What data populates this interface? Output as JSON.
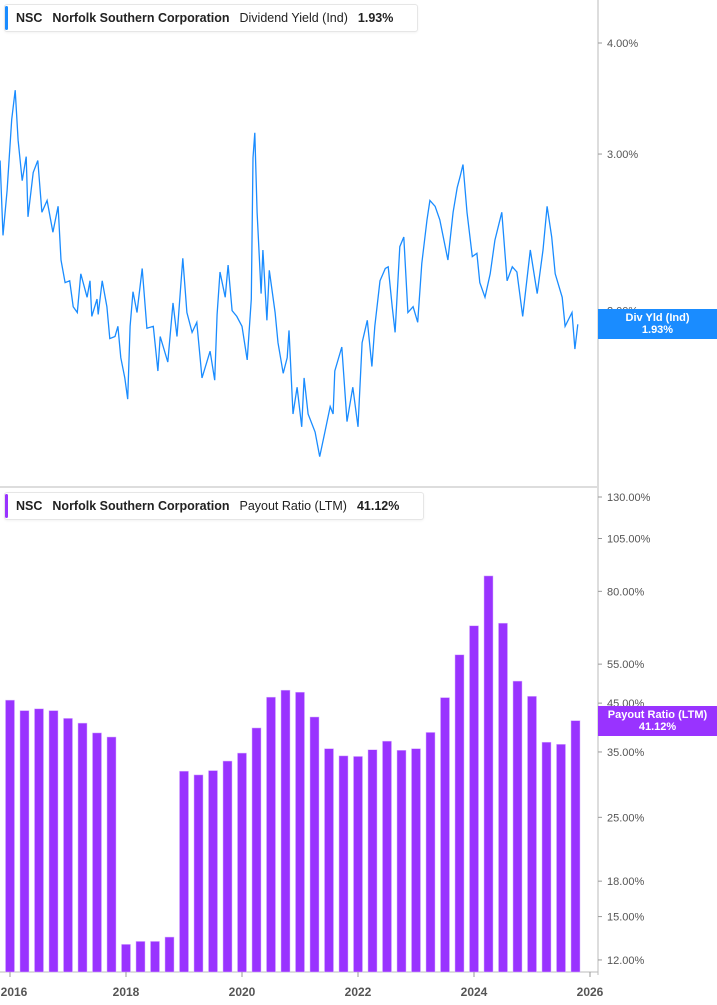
{
  "colors": {
    "yield": "#1a8cff",
    "payout": "#9933ff"
  },
  "top_legend": {
    "ticker": "NSC",
    "company": "Norfolk Southern Corporation",
    "metric": "Dividend Yield (Ind)",
    "value": "1.93%"
  },
  "top_tag": {
    "label": "Div Yld (Ind)",
    "value": "1.93%"
  },
  "bottom_legend": {
    "ticker": "NSC",
    "company": "Norfolk Southern Corporation",
    "metric": "Payout Ratio (LTM)",
    "value": "41.12%"
  },
  "bottom_tag": {
    "label": "Payout Ratio (LTM)",
    "value": "41.12%"
  },
  "chart_data": [
    {
      "type": "line",
      "series_name": "Dividend Yield (Ind)",
      "y_scale": "log",
      "ylim": [
        1.3,
        4.3
      ],
      "y_ticks": [
        "4.00%",
        "3.00%",
        "2.00%"
      ],
      "y_tick_values": [
        4,
        3,
        2
      ],
      "xlim": [
        2015.83,
        2026.2
      ],
      "points": [
        [
          2015.83,
          2.95
        ],
        [
          2015.88,
          2.43
        ],
        [
          2015.95,
          2.73
        ],
        [
          2016.03,
          3.28
        ],
        [
          2016.09,
          3.54
        ],
        [
          2016.14,
          3.11
        ],
        [
          2016.21,
          2.8
        ],
        [
          2016.28,
          2.98
        ],
        [
          2016.31,
          2.55
        ],
        [
          2016.4,
          2.86
        ],
        [
          2016.48,
          2.95
        ],
        [
          2016.55,
          2.58
        ],
        [
          2016.64,
          2.66
        ],
        [
          2016.74,
          2.45
        ],
        [
          2016.83,
          2.62
        ],
        [
          2016.88,
          2.28
        ],
        [
          2016.95,
          2.15
        ],
        [
          2017.03,
          2.16
        ],
        [
          2017.09,
          2.02
        ],
        [
          2017.16,
          1.99
        ],
        [
          2017.22,
          2.2
        ],
        [
          2017.33,
          2.07
        ],
        [
          2017.38,
          2.16
        ],
        [
          2017.41,
          1.97
        ],
        [
          2017.5,
          2.06
        ],
        [
          2017.52,
          1.98
        ],
        [
          2017.59,
          2.16
        ],
        [
          2017.67,
          2.02
        ],
        [
          2017.72,
          1.86
        ],
        [
          2017.81,
          1.87
        ],
        [
          2017.86,
          1.92
        ],
        [
          2017.91,
          1.77
        ],
        [
          2017.98,
          1.68
        ],
        [
          2018.03,
          1.59
        ],
        [
          2018.07,
          1.92
        ],
        [
          2018.12,
          2.1
        ],
        [
          2018.19,
          1.99
        ],
        [
          2018.28,
          2.23
        ],
        [
          2018.36,
          1.91
        ],
        [
          2018.47,
          1.92
        ],
        [
          2018.55,
          1.71
        ],
        [
          2018.59,
          1.87
        ],
        [
          2018.72,
          1.75
        ],
        [
          2018.81,
          2.04
        ],
        [
          2018.88,
          1.87
        ],
        [
          2018.98,
          2.29
        ],
        [
          2019.05,
          1.99
        ],
        [
          2019.14,
          1.89
        ],
        [
          2019.22,
          1.94
        ],
        [
          2019.31,
          1.68
        ],
        [
          2019.45,
          1.8
        ],
        [
          2019.53,
          1.67
        ],
        [
          2019.57,
          1.98
        ],
        [
          2019.62,
          2.21
        ],
        [
          2019.71,
          2.07
        ],
        [
          2019.76,
          2.25
        ],
        [
          2019.83,
          2.0
        ],
        [
          2019.91,
          1.97
        ],
        [
          2020.0,
          1.92
        ],
        [
          2020.09,
          1.76
        ],
        [
          2020.16,
          2.06
        ],
        [
          2020.19,
          2.97
        ],
        [
          2020.22,
          3.17
        ],
        [
          2020.26,
          2.58
        ],
        [
          2020.33,
          2.09
        ],
        [
          2020.36,
          2.34
        ],
        [
          2020.43,
          1.95
        ],
        [
          2020.47,
          2.22
        ],
        [
          2020.57,
          1.99
        ],
        [
          2020.62,
          1.84
        ],
        [
          2020.71,
          1.7
        ],
        [
          2020.78,
          1.77
        ],
        [
          2020.81,
          1.9
        ],
        [
          2020.88,
          1.53
        ],
        [
          2020.95,
          1.64
        ],
        [
          2021.03,
          1.48
        ],
        [
          2021.07,
          1.68
        ],
        [
          2021.14,
          1.53
        ],
        [
          2021.26,
          1.46
        ],
        [
          2021.34,
          1.37
        ],
        [
          2021.43,
          1.46
        ],
        [
          2021.52,
          1.56
        ],
        [
          2021.57,
          1.53
        ],
        [
          2021.6,
          1.71
        ],
        [
          2021.72,
          1.82
        ],
        [
          2021.81,
          1.5
        ],
        [
          2021.91,
          1.64
        ],
        [
          2022.0,
          1.48
        ],
        [
          2022.07,
          1.84
        ],
        [
          2022.16,
          1.95
        ],
        [
          2022.24,
          1.73
        ],
        [
          2022.29,
          1.92
        ],
        [
          2022.38,
          2.16
        ],
        [
          2022.47,
          2.23
        ],
        [
          2022.52,
          2.24
        ],
        [
          2022.59,
          2.02
        ],
        [
          2022.64,
          1.89
        ],
        [
          2022.72,
          2.36
        ],
        [
          2022.79,
          2.42
        ],
        [
          2022.86,
          1.99
        ],
        [
          2022.95,
          2.02
        ],
        [
          2023.03,
          1.94
        ],
        [
          2023.1,
          2.26
        ],
        [
          2023.19,
          2.53
        ],
        [
          2023.24,
          2.66
        ],
        [
          2023.33,
          2.62
        ],
        [
          2023.41,
          2.53
        ],
        [
          2023.55,
          2.28
        ],
        [
          2023.64,
          2.58
        ],
        [
          2023.71,
          2.75
        ],
        [
          2023.76,
          2.83
        ],
        [
          2023.81,
          2.92
        ],
        [
          2023.88,
          2.58
        ],
        [
          2023.97,
          2.3
        ],
        [
          2024.05,
          2.32
        ],
        [
          2024.1,
          2.15
        ],
        [
          2024.19,
          2.07
        ],
        [
          2024.28,
          2.2
        ],
        [
          2024.36,
          2.4
        ],
        [
          2024.48,
          2.58
        ],
        [
          2024.57,
          2.16
        ],
        [
          2024.66,
          2.24
        ],
        [
          2024.74,
          2.21
        ],
        [
          2024.84,
          1.97
        ],
        [
          2024.97,
          2.34
        ],
        [
          2025.09,
          2.09
        ],
        [
          2025.19,
          2.34
        ],
        [
          2025.26,
          2.62
        ],
        [
          2025.34,
          2.42
        ],
        [
          2025.4,
          2.2
        ],
        [
          2025.52,
          2.07
        ],
        [
          2025.57,
          1.92
        ],
        [
          2025.69,
          1.99
        ],
        [
          2025.74,
          1.81
        ],
        [
          2025.79,
          1.93
        ]
      ],
      "last_value": 1.93
    },
    {
      "type": "bar",
      "series_name": "Payout Ratio (LTM)",
      "y_scale": "log",
      "y_ticks": [
        "130.00%",
        "105.00%",
        "80.00%",
        "55.00%",
        "45.00%",
        "35.00%",
        "25.00%",
        "18.00%",
        "15.00%",
        "12.00%"
      ],
      "y_tick_values": [
        130,
        105,
        80,
        55,
        45,
        35,
        25,
        18,
        15,
        12
      ],
      "x_ticks": [
        "2016",
        "2018",
        "2020",
        "2022",
        "2024",
        "2026"
      ],
      "x_tick_values": [
        2016,
        2018,
        2020,
        2022,
        2024,
        2026
      ],
      "x": [
        2016.0,
        2016.25,
        2016.5,
        2016.75,
        2017.0,
        2017.25,
        2017.5,
        2017.75,
        2018.0,
        2018.25,
        2018.5,
        2018.75,
        2019.0,
        2019.25,
        2019.5,
        2019.75,
        2020.0,
        2020.25,
        2020.5,
        2020.75,
        2021.0,
        2021.25,
        2021.5,
        2021.75,
        2022.0,
        2022.25,
        2022.5,
        2022.75,
        2023.0,
        2023.25,
        2023.5,
        2023.75,
        2024.0,
        2024.25,
        2024.5,
        2024.75,
        2025.0,
        2025.25,
        2025.5,
        2025.75
      ],
      "values": [
        45.7,
        43.3,
        43.7,
        43.3,
        41.6,
        40.6,
        38.6,
        37.8,
        13.0,
        13.2,
        13.2,
        13.5,
        31.7,
        31.1,
        31.8,
        33.4,
        34.8,
        39.6,
        46.4,
        48.1,
        47.6,
        41.9,
        35.6,
        34.3,
        34.2,
        35.4,
        37.0,
        35.3,
        35.6,
        38.7,
        46.3,
        57.7,
        67.0,
        86.6,
        67.9,
        50.4,
        46.6,
        36.8,
        36.4,
        41.12
      ],
      "last_value": 41.12
    }
  ]
}
